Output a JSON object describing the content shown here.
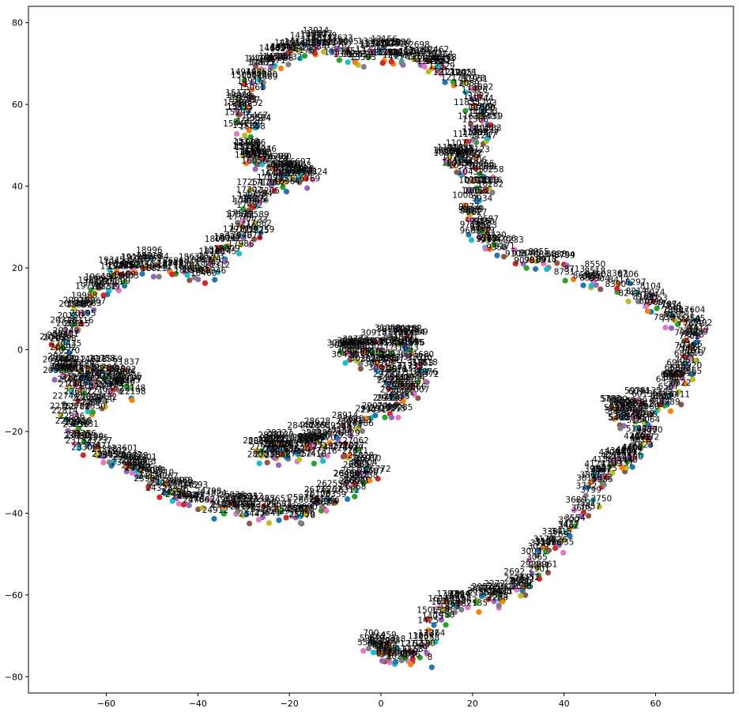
{
  "chart_data": {
    "type": "scatter",
    "title": "",
    "xlabel": "",
    "ylabel": "",
    "xlim": [
      -77,
      77
    ],
    "ylim": [
      -84,
      84
    ],
    "x_ticks": [
      -60,
      -40,
      -20,
      0,
      20,
      40,
      60
    ],
    "y_ticks": [
      -80,
      -60,
      -40,
      -20,
      0,
      20,
      40,
      60,
      80
    ],
    "x_tick_labels": [
      "−60",
      "−40",
      "−20",
      "0",
      "20",
      "40",
      "60"
    ],
    "y_tick_labels": [
      "−80",
      "−60",
      "−40",
      "−20",
      "0",
      "20",
      "40",
      "60",
      "80"
    ],
    "grid": false,
    "legend": "none",
    "palette": [
      "#1f77b4",
      "#ff7f0e",
      "#2ca02c",
      "#d62728",
      "#9467bd",
      "#8c564b",
      "#e377c2",
      "#7f7f7f",
      "#bcbd22",
      "#17becf"
    ],
    "path_description": "a continuous chain of points visiting each anchor in order; each point is labelled with its index",
    "anchors": [
      [
        10,
        -75
      ],
      [
        2,
        -73
      ],
      [
        -3,
        -71
      ],
      [
        2,
        -74
      ],
      [
        10,
        -72
      ],
      [
        13,
        -63
      ],
      [
        18,
        -62
      ],
      [
        23,
        -60
      ],
      [
        28,
        -59
      ],
      [
        33,
        -55
      ],
      [
        36,
        -49
      ],
      [
        40,
        -44
      ],
      [
        46,
        -35
      ],
      [
        48,
        -30
      ],
      [
        52,
        -27
      ],
      [
        56,
        -24
      ],
      [
        58,
        -20
      ],
      [
        55,
        -16
      ],
      [
        50,
        -14
      ],
      [
        54,
        -13
      ],
      [
        62,
        -12
      ],
      [
        65,
        -8
      ],
      [
        66,
        -4
      ],
      [
        68,
        0
      ],
      [
        68,
        6
      ],
      [
        64,
        9
      ],
      [
        58,
        13
      ],
      [
        50,
        18
      ],
      [
        42,
        20
      ],
      [
        32,
        23
      ],
      [
        24,
        26
      ],
      [
        21,
        30
      ],
      [
        20,
        36
      ],
      [
        22,
        42
      ],
      [
        18,
        46
      ],
      [
        15,
        47
      ],
      [
        21,
        52
      ],
      [
        22,
        57
      ],
      [
        20,
        62
      ],
      [
        16,
        68
      ],
      [
        12,
        72
      ],
      [
        6,
        72
      ],
      [
        2,
        74
      ],
      [
        -4,
        73
      ],
      [
        -10,
        75
      ],
      [
        -15,
        76
      ],
      [
        -20,
        73
      ],
      [
        -25,
        71
      ],
      [
        -28,
        66
      ],
      [
        -30,
        60
      ],
      [
        -29,
        54
      ],
      [
        -30,
        48
      ],
      [
        -25,
        46
      ],
      [
        -20,
        44
      ],
      [
        -16,
        43
      ],
      [
        -26,
        40
      ],
      [
        -30,
        35
      ],
      [
        -28,
        29
      ],
      [
        -33,
        25
      ],
      [
        -38,
        20
      ],
      [
        -45,
        20
      ],
      [
        -52,
        22
      ],
      [
        -57,
        20
      ],
      [
        -60,
        17
      ],
      [
        -64,
        12
      ],
      [
        -68,
        6
      ],
      [
        -70,
        0
      ],
      [
        -70,
        -5
      ],
      [
        -66,
        -8
      ],
      [
        -62,
        -4
      ],
      [
        -58,
        -5
      ],
      [
        -54,
        -8
      ],
      [
        -62,
        -12
      ],
      [
        -68,
        -14
      ],
      [
        -66,
        -20
      ],
      [
        -62,
        -24
      ],
      [
        -56,
        -26
      ],
      [
        -52,
        -30
      ],
      [
        -48,
        -33
      ],
      [
        -42,
        -35
      ],
      [
        -36,
        -38
      ],
      [
        -30,
        -38
      ],
      [
        -24,
        -39
      ],
      [
        -18,
        -39
      ],
      [
        -12,
        -36
      ],
      [
        -6,
        -32
      ],
      [
        -2,
        -29
      ],
      [
        -8,
        -22
      ],
      [
        -16,
        -24
      ],
      [
        -22,
        -25
      ],
      [
        -26,
        -24
      ],
      [
        -20,
        -22
      ],
      [
        -12,
        -20
      ],
      [
        -4,
        -18
      ],
      [
        2,
        -13
      ],
      [
        4,
        -8
      ],
      [
        2,
        -4
      ],
      [
        -2,
        -1
      ],
      [
        -8,
        0
      ],
      [
        -2,
        2
      ],
      [
        4,
        3
      ],
      [
        6,
        2
      ],
      [
        8,
        -4
      ],
      [
        8,
        -10
      ]
    ],
    "points_per_segment": 9,
    "labels_shown": [
      "80",
      "60",
      "40",
      "20",
      "0",
      "-20",
      "-40",
      "-60",
      "-80"
    ]
  }
}
